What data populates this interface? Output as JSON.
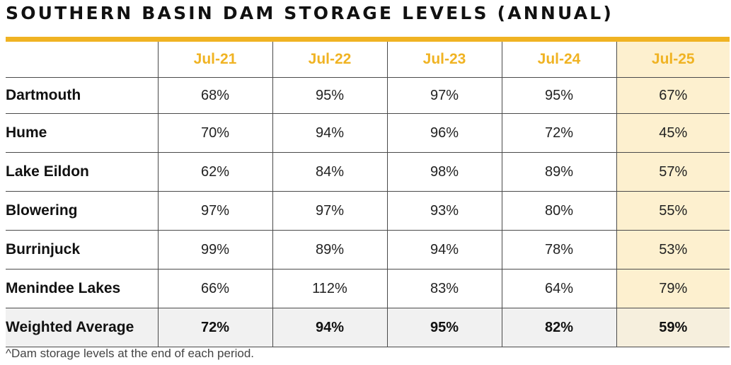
{
  "title": "SOUTHERN BASIN DAM STORAGE LEVELS (ANNUAL)",
  "footnote": "^Dam storage levels at the end of each period.",
  "colors": {
    "accent": "#f0b323",
    "highlight": "#fdf0cf",
    "average_row": "#f1f1f1"
  },
  "chart_data": {
    "type": "table",
    "title": "SOUTHERN BASIN DAM STORAGE LEVELS (ANNUAL)",
    "columns": [
      "Jul-21",
      "Jul-22",
      "Jul-23",
      "Jul-24",
      "Jul-25"
    ],
    "highlighted_column": "Jul-25",
    "rows": [
      {
        "label": "Dartmouth",
        "values": [
          "68%",
          "95%",
          "97%",
          "95%",
          "67%"
        ]
      },
      {
        "label": "Hume",
        "values": [
          "70%",
          "94%",
          "96%",
          "72%",
          "45%"
        ]
      },
      {
        "label": "Lake Eildon",
        "values": [
          "62%",
          "84%",
          "98%",
          "89%",
          "57%"
        ]
      },
      {
        "label": "Blowering",
        "values": [
          "97%",
          "97%",
          "93%",
          "80%",
          "55%"
        ]
      },
      {
        "label": "Burrinjuck",
        "values": [
          "99%",
          "89%",
          "94%",
          "78%",
          "53%"
        ]
      },
      {
        "label": "Menindee Lakes",
        "values": [
          "66%",
          "112%",
          "83%",
          "64%",
          "79%"
        ]
      },
      {
        "label": "Weighted Average",
        "values": [
          "72%",
          "94%",
          "95%",
          "82%",
          "59%"
        ]
      }
    ]
  }
}
